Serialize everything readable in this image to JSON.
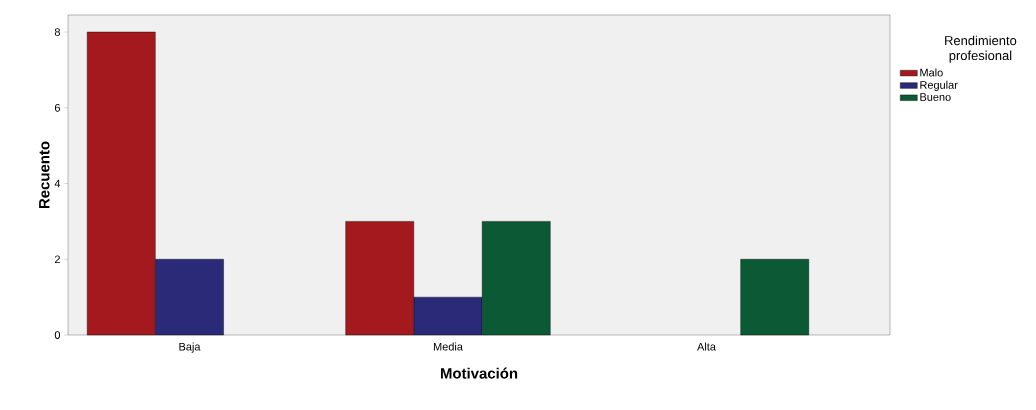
{
  "chart_data": {
    "type": "bar",
    "xlabel": "Motivación",
    "ylabel": "Recuento",
    "legend_title": "Rendimiento profesional",
    "categories": [
      "Baja",
      "Media",
      "Alta"
    ],
    "series": [
      {
        "name": "Malo",
        "color": "#a3191e",
        "values": [
          8,
          3,
          null
        ]
      },
      {
        "name": "Regular",
        "color": "#2a2a78",
        "values": [
          2,
          1,
          null
        ]
      },
      {
        "name": "Bueno",
        "color": "#0b5a35",
        "values": [
          null,
          3,
          2
        ]
      }
    ],
    "ylim": [
      0,
      8.45
    ],
    "yticks": [
      0,
      2,
      4,
      6,
      8
    ],
    "grid": false,
    "legend": "right"
  }
}
